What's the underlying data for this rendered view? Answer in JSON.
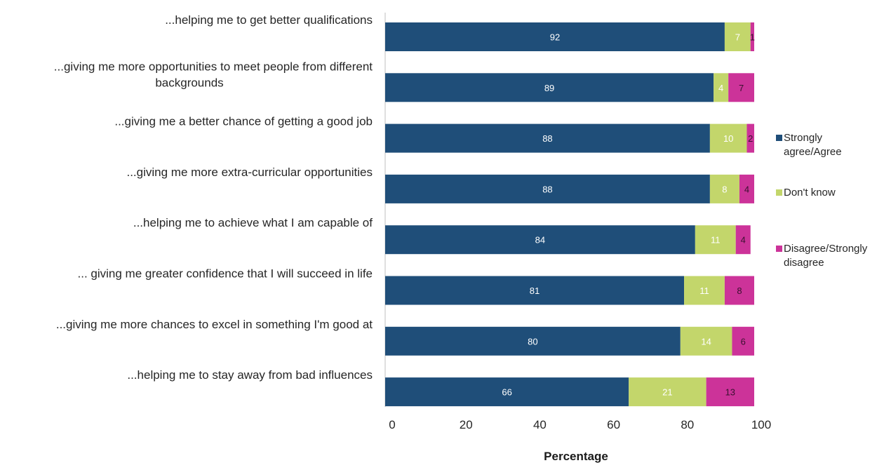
{
  "chart_data": {
    "type": "bar",
    "orientation": "horizontal",
    "stacked": true,
    "categories": [
      [
        "...helping me to get better qualifications"
      ],
      [
        "...giving me more opportunities to meet people from different",
        "backgrounds"
      ],
      [
        "...giving me a better chance of getting a good job"
      ],
      [
        "...giving me more extra-curricular opportunities"
      ],
      [
        "...helping me to achieve what I am capable of"
      ],
      [
        "... giving me greater confidence that I will succeed in life"
      ],
      [
        "...giving me more chances to excel in something I'm good at"
      ],
      [
        "...helping me to stay away from bad influences"
      ]
    ],
    "series": [
      {
        "name": "Strongly agree/Agree",
        "legend_lines": [
          "Strongly",
          "agree/Agree"
        ],
        "color": "#1f4e79",
        "label_color": "#ffffff",
        "values": [
          92,
          89,
          88,
          88,
          84,
          81,
          80,
          66
        ]
      },
      {
        "name": "Don't know",
        "legend_lines": [
          "Don't know"
        ],
        "color": "#c3d66b",
        "label_color": "#ffffff",
        "values": [
          7,
          4,
          10,
          8,
          11,
          11,
          14,
          21
        ]
      },
      {
        "name": "Disagree/Strongly disagree",
        "legend_lines": [
          "Disagree/Strongly",
          "disagree"
        ],
        "color": "#cc3399",
        "label_color": "#3a1030",
        "values": [
          1,
          7,
          2,
          4,
          4,
          8,
          6,
          13
        ]
      }
    ],
    "xlim": [
      0,
      100
    ],
    "xticks": [
      0,
      20,
      40,
      60,
      80,
      100
    ],
    "xlabel": "Percentage",
    "ylabel": "",
    "title": "",
    "grid": false,
    "legend_position": "right"
  }
}
